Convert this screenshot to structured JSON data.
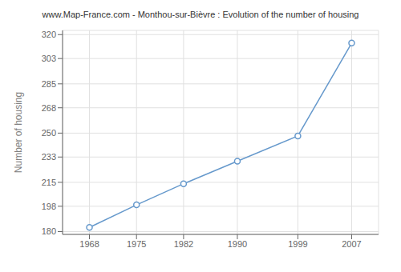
{
  "chart_data": {
    "type": "line",
    "title": "www.Map-France.com - Monthou-sur-Bièvre : Evolution of the number of housing",
    "ylabel": "Number of housing",
    "x": [
      1968,
      1975,
      1982,
      1990,
      1999,
      2007
    ],
    "values": [
      183,
      199,
      214,
      230,
      248,
      314
    ],
    "color": "#6699cc",
    "marker": "circle",
    "xlim": [
      1964,
      2011
    ],
    "ylim": [
      178,
      323
    ],
    "xticks": [
      1968,
      1975,
      1982,
      1990,
      1999,
      2007
    ],
    "yticks": [
      180,
      198,
      215,
      233,
      250,
      268,
      285,
      303,
      320
    ],
    "grid": true
  }
}
